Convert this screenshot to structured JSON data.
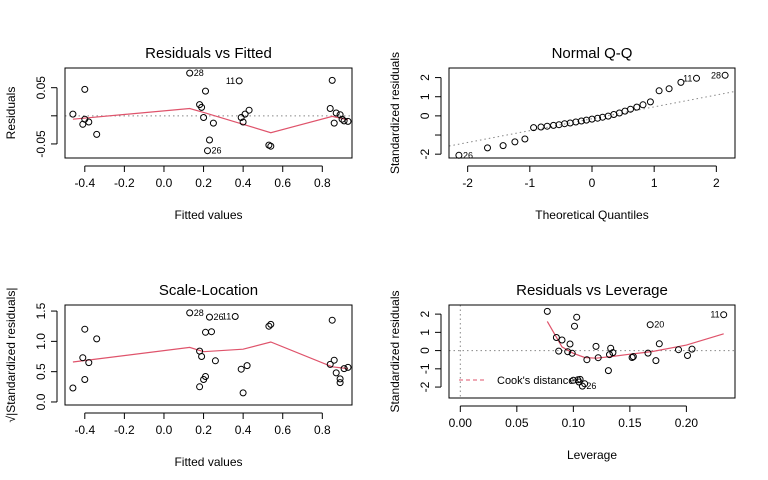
{
  "colors": {
    "fit": "#DF536B",
    "point": "#000000",
    "ref": "#888888"
  },
  "chart_data": [
    {
      "type": "scatter",
      "title": "Residuals vs Fitted",
      "xlabel": "Fitted values",
      "ylabel": "Residuals",
      "xlim": [
        -0.5,
        0.95
      ],
      "ylim": [
        -0.075,
        0.085
      ],
      "xticks": [
        -0.4,
        -0.2,
        0.0,
        0.2,
        0.4,
        0.6,
        0.8
      ],
      "xtick_labels": [
        "-0.4",
        "-0.2",
        "0.0",
        "0.2",
        "0.4",
        "0.6",
        "0.8"
      ],
      "yticks": [
        -0.05,
        0.0,
        0.05
      ],
      "ytick_labels": [
        "-0.05",
        "",
        "0.05"
      ],
      "ref_line": {
        "kind": "hline",
        "value": 0,
        "style": "dotted"
      },
      "points": [
        [
          -0.46,
          0.003
        ],
        [
          -0.41,
          -0.015
        ],
        [
          -0.4,
          -0.006
        ],
        [
          -0.4,
          0.047
        ],
        [
          -0.38,
          -0.011
        ],
        [
          -0.34,
          -0.033
        ],
        [
          0.13,
          0.076
        ],
        [
          0.18,
          0.02
        ],
        [
          0.19,
          0.015
        ],
        [
          0.2,
          -0.003
        ],
        [
          0.21,
          0.044
        ],
        [
          0.22,
          -0.062
        ],
        [
          0.23,
          -0.043
        ],
        [
          0.25,
          -0.013
        ],
        [
          0.38,
          0.062
        ],
        [
          0.39,
          -0.003
        ],
        [
          0.4,
          -0.011
        ],
        [
          0.41,
          0.003
        ],
        [
          0.43,
          0.01
        ],
        [
          0.53,
          -0.052
        ],
        [
          0.54,
          -0.054
        ],
        [
          0.84,
          0.013
        ],
        [
          0.85,
          0.063
        ],
        [
          0.86,
          -0.013
        ],
        [
          0.87,
          0.005
        ],
        [
          0.89,
          0.002
        ],
        [
          0.9,
          -0.006
        ],
        [
          0.91,
          -0.009
        ],
        [
          0.93,
          -0.01
        ]
      ],
      "smooth": [
        [
          -0.46,
          -0.006
        ],
        [
          0.13,
          0.013
        ],
        [
          0.2,
          0.006
        ],
        [
          0.4,
          -0.015
        ],
        [
          0.54,
          -0.03
        ],
        [
          0.85,
          -0.001
        ],
        [
          0.93,
          -0.007
        ]
      ],
      "labels": [
        {
          "text": "28",
          "at": [
            0.13,
            0.076
          ],
          "side": "right"
        },
        {
          "text": "11",
          "at": [
            0.38,
            0.062
          ],
          "side": "left"
        },
        {
          "text": "26",
          "at": [
            0.22,
            -0.062
          ],
          "side": "right"
        }
      ]
    },
    {
      "type": "scatter",
      "title": "Normal Q-Q",
      "xlabel": "Theoretical Quantiles",
      "ylabel": "Standardized residuals",
      "xlim": [
        -2.3,
        2.3
      ],
      "ylim": [
        -2.2,
        2.5
      ],
      "xticks": [
        -2,
        -1,
        0,
        1,
        2
      ],
      "xtick_labels": [
        "-2",
        "-1",
        "0",
        "1",
        "2"
      ],
      "yticks": [
        -2,
        -1,
        0,
        1,
        2
      ],
      "ytick_labels": [
        "-2",
        "",
        "0",
        "1",
        "2"
      ],
      "ref_line": {
        "kind": "abline",
        "intercept": -0.15,
        "slope": 0.62,
        "style": "dotted"
      },
      "points": [
        [
          -2.14,
          -2.06
        ],
        [
          -1.68,
          -1.67
        ],
        [
          -1.43,
          -1.55
        ],
        [
          -1.24,
          -1.36
        ],
        [
          -1.08,
          -1.21
        ],
        [
          -0.94,
          -0.61
        ],
        [
          -0.82,
          -0.58
        ],
        [
          -0.72,
          -0.54
        ],
        [
          -0.62,
          -0.5
        ],
        [
          -0.53,
          -0.46
        ],
        [
          -0.44,
          -0.41
        ],
        [
          -0.35,
          -0.37
        ],
        [
          -0.26,
          -0.32
        ],
        [
          -0.17,
          -0.27
        ],
        [
          -0.09,
          -0.22
        ],
        [
          0.0,
          -0.17
        ],
        [
          0.09,
          -0.12
        ],
        [
          0.17,
          -0.07
        ],
        [
          0.26,
          -0.01
        ],
        [
          0.35,
          0.07
        ],
        [
          0.44,
          0.15
        ],
        [
          0.53,
          0.25
        ],
        [
          0.62,
          0.35
        ],
        [
          0.72,
          0.46
        ],
        [
          0.82,
          0.58
        ],
        [
          0.94,
          0.73
        ],
        [
          1.08,
          1.31
        ],
        [
          1.24,
          1.42
        ],
        [
          1.43,
          1.75
        ],
        [
          1.68,
          1.96
        ],
        [
          2.14,
          2.12
        ]
      ],
      "labels": [
        {
          "text": "26",
          "at": [
            -2.14,
            -2.06
          ],
          "side": "right"
        },
        {
          "text": "11",
          "at": [
            1.68,
            1.96
          ],
          "side": "left"
        },
        {
          "text": "28",
          "at": [
            2.14,
            2.12
          ],
          "side": "left"
        }
      ]
    },
    {
      "type": "scatter",
      "title": "Scale-Location",
      "xlabel": "Fitted values",
      "ylabel": "√|Standardized residuals|",
      "xlim": [
        -0.5,
        0.95
      ],
      "ylim": [
        -0.05,
        1.6
      ],
      "xticks": [
        -0.4,
        -0.2,
        0.0,
        0.2,
        0.4,
        0.6,
        0.8
      ],
      "xtick_labels": [
        "-0.4",
        "-0.2",
        "0.0",
        "0.2",
        "0.4",
        "0.6",
        "0.8"
      ],
      "yticks": [
        0.0,
        0.5,
        1.0,
        1.5
      ],
      "ytick_labels": [
        "0.0",
        "0.5",
        "1.0",
        "1.5"
      ],
      "points": [
        [
          -0.46,
          0.23
        ],
        [
          -0.41,
          0.73
        ],
        [
          -0.4,
          1.2
        ],
        [
          -0.4,
          0.37
        ],
        [
          -0.38,
          0.65
        ],
        [
          -0.34,
          1.04
        ],
        [
          0.13,
          1.47
        ],
        [
          0.18,
          0.84
        ],
        [
          0.18,
          0.25
        ],
        [
          0.19,
          0.75
        ],
        [
          0.2,
          0.37
        ],
        [
          0.21,
          1.15
        ],
        [
          0.21,
          0.42
        ],
        [
          0.23,
          1.4
        ],
        [
          0.24,
          1.16
        ],
        [
          0.26,
          0.68
        ],
        [
          0.36,
          1.41
        ],
        [
          0.39,
          0.54
        ],
        [
          0.4,
          0.15
        ],
        [
          0.42,
          0.6
        ],
        [
          0.53,
          1.25
        ],
        [
          0.54,
          1.28
        ],
        [
          0.84,
          0.62
        ],
        [
          0.85,
          1.35
        ],
        [
          0.86,
          0.69
        ],
        [
          0.87,
          0.48
        ],
        [
          0.89,
          0.38
        ],
        [
          0.89,
          0.32
        ],
        [
          0.91,
          0.55
        ],
        [
          0.93,
          0.57
        ]
      ],
      "smooth": [
        [
          -0.46,
          0.66
        ],
        [
          0.13,
          0.9
        ],
        [
          0.2,
          0.83
        ],
        [
          0.4,
          0.87
        ],
        [
          0.54,
          0.99
        ],
        [
          0.85,
          0.58
        ],
        [
          0.93,
          0.55
        ]
      ],
      "labels": [
        {
          "text": "28",
          "at": [
            0.13,
            1.47
          ],
          "side": "right"
        },
        {
          "text": "26",
          "at": [
            0.23,
            1.4
          ],
          "side": "right"
        },
        {
          "text": "11",
          "at": [
            0.36,
            1.41
          ],
          "side": "left"
        }
      ]
    },
    {
      "type": "scatter",
      "title": "Residuals vs Leverage",
      "xlabel": "Leverage",
      "ylabel": "Standardized residuals",
      "xlim": [
        -0.01,
        0.243
      ],
      "ylim": [
        -2.6,
        2.5
      ],
      "xticks": [
        0.0,
        0.05,
        0.1,
        0.15,
        0.2
      ],
      "xtick_labels": [
        "0.00",
        "0.05",
        "0.10",
        "0.15",
        "0.20"
      ],
      "yticks": [
        -2,
        -1,
        0,
        1,
        2
      ],
      "ytick_labels": [
        "-2",
        "-1",
        "0",
        "1",
        "2"
      ],
      "ref_line": {
        "kind": "hv",
        "h": 0,
        "v": 0,
        "style": "dotted"
      },
      "points": [
        [
          0.077,
          2.15
        ],
        [
          0.085,
          0.72
        ],
        [
          0.087,
          -0.03
        ],
        [
          0.09,
          0.58
        ],
        [
          0.095,
          -0.06
        ],
        [
          0.097,
          0.36
        ],
        [
          0.099,
          -0.15
        ],
        [
          0.1,
          -1.63
        ],
        [
          0.101,
          1.34
        ],
        [
          0.103,
          1.83
        ],
        [
          0.104,
          -1.6
        ],
        [
          0.105,
          -1.72
        ],
        [
          0.106,
          -1.58
        ],
        [
          0.108,
          -1.95
        ],
        [
          0.11,
          -1.82
        ],
        [
          0.112,
          -0.5
        ],
        [
          0.12,
          0.23
        ],
        [
          0.122,
          -0.39
        ],
        [
          0.131,
          -1.1
        ],
        [
          0.132,
          -0.22
        ],
        [
          0.133,
          0.13
        ],
        [
          0.135,
          -0.11
        ],
        [
          0.152,
          -0.38
        ],
        [
          0.153,
          -0.33
        ],
        [
          0.166,
          -0.14
        ],
        [
          0.168,
          1.42
        ],
        [
          0.173,
          -0.55
        ],
        [
          0.176,
          0.37
        ],
        [
          0.193,
          0.05
        ],
        [
          0.201,
          -0.27
        ],
        [
          0.205,
          0.08
        ],
        [
          0.233,
          1.97
        ]
      ],
      "smooth": [
        [
          0.077,
          1.6
        ],
        [
          0.09,
          0.2
        ],
        [
          0.1,
          -0.15
        ],
        [
          0.11,
          -0.38
        ],
        [
          0.12,
          -0.42
        ],
        [
          0.135,
          -0.32
        ],
        [
          0.15,
          -0.2
        ],
        [
          0.17,
          -0.05
        ],
        [
          0.2,
          0.3
        ],
        [
          0.233,
          0.92
        ]
      ],
      "labels": [
        {
          "text": "20",
          "at": [
            0.168,
            1.42
          ],
          "side": "right"
        },
        {
          "text": "11",
          "at": [
            0.233,
            1.97
          ],
          "side": "left"
        },
        {
          "text": "26",
          "at": [
            0.108,
            -1.95
          ],
          "side": "right"
        }
      ],
      "legend": {
        "label": "Cook's distance",
        "placement": "bottom-left"
      }
    }
  ]
}
